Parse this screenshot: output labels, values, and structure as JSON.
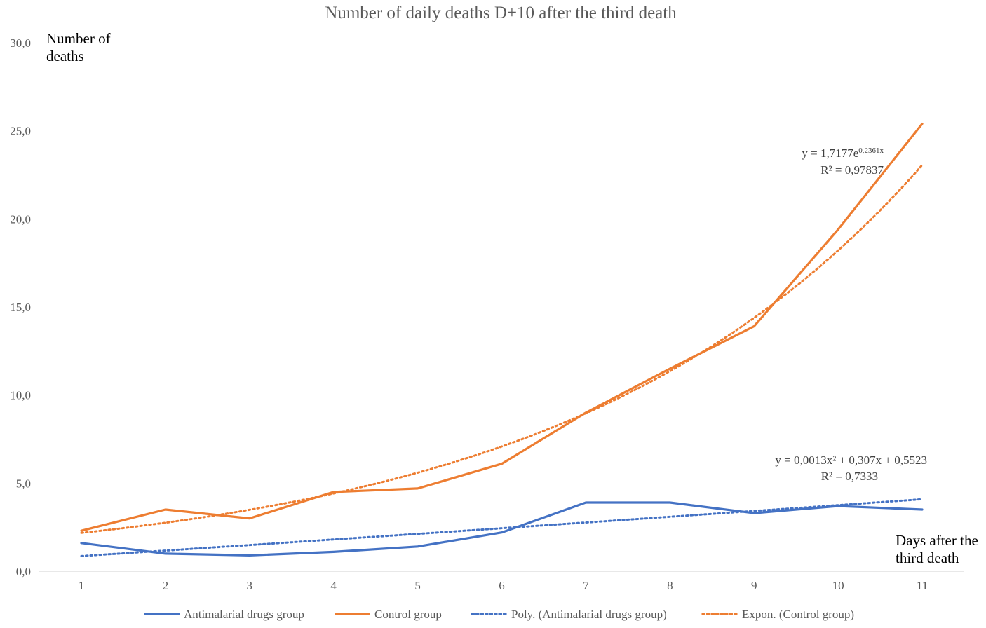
{
  "chart_data": {
    "type": "line",
    "title": "Number of daily deaths D+10 after the third death",
    "ylabel": [
      "Number of",
      "deaths"
    ],
    "xlabel": [
      "Days after the",
      "third death"
    ],
    "x": [
      1,
      2,
      3,
      4,
      5,
      6,
      7,
      8,
      9,
      10,
      11
    ],
    "xlim": [
      0.5,
      11.5
    ],
    "ylim": [
      0,
      30
    ],
    "y_ticks": [
      "0,0",
      "5,0",
      "10,0",
      "15,0",
      "20,0",
      "25,0",
      "30,0"
    ],
    "y_tick_values": [
      0,
      5,
      10,
      15,
      20,
      25,
      30
    ],
    "grid": false,
    "legend_position": "bottom",
    "series": [
      {
        "name": "Antimalarial drugs group",
        "style": "solid",
        "color": "#4472C4",
        "values": [
          1.6,
          1.0,
          0.9,
          1.1,
          1.4,
          2.2,
          3.9,
          3.9,
          3.3,
          3.7,
          3.5
        ]
      },
      {
        "name": "Control group",
        "style": "solid",
        "color": "#ED7D31",
        "values": [
          2.3,
          3.5,
          3.0,
          4.5,
          4.7,
          6.1,
          9.0,
          11.5,
          13.9,
          19.4,
          25.4
        ]
      },
      {
        "name": "Poly.  (Antimalarial drugs group)",
        "style": "dotted",
        "color": "#4472C4",
        "trend": "poly2",
        "coefficients": [
          0.0013,
          0.307,
          0.5523
        ]
      },
      {
        "name": "Expon.  (Control group)",
        "style": "dotted",
        "color": "#ED7D31",
        "trend": "exp",
        "coefficients": [
          1.7177,
          0.2361
        ]
      }
    ],
    "annotations": [
      {
        "id": "exp-equation",
        "lines": [
          {
            "parts": [
              {
                "text": "y = 1,7177e"
              },
              {
                "text": "0,2361x",
                "sup": true
              }
            ]
          },
          {
            "parts": [
              {
                "text": "R² = 0,97837"
              }
            ]
          }
        ]
      },
      {
        "id": "poly-equation",
        "lines": [
          {
            "parts": [
              {
                "text": "y = 0,0013x² + 0,307x + 0,5523"
              }
            ]
          },
          {
            "parts": [
              {
                "text": "R² = 0,7333"
              }
            ]
          }
        ]
      }
    ]
  }
}
